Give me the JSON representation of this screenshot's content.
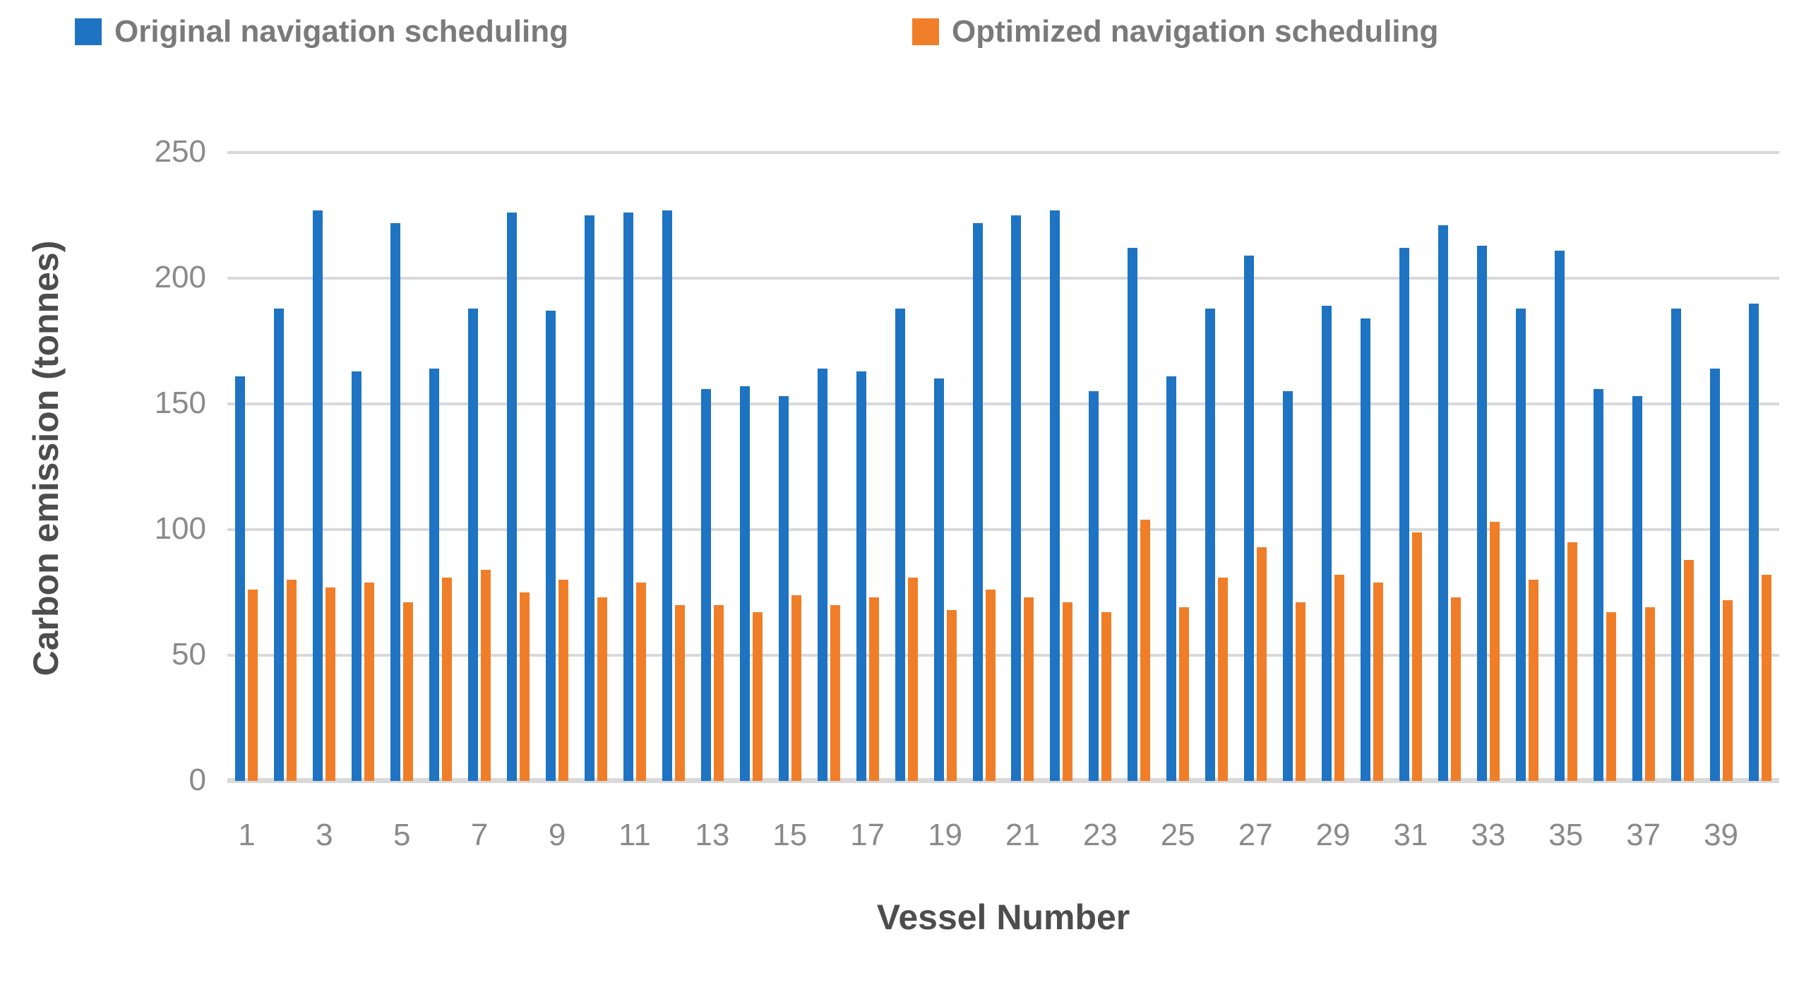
{
  "legend": {
    "items": [
      {
        "label": "Original navigation scheduling",
        "color": "#1e73c2"
      },
      {
        "label": "Optimized navigation scheduling",
        "color": "#f07e28"
      }
    ]
  },
  "colors": {
    "original_series": "#1e73c2",
    "optimized_series": "#f07e28",
    "gridline": "#d9d9d9",
    "tick_text": "#8a8a8a",
    "axis_title_text": "#4d4d4d",
    "legend_text": "#7a7a7a"
  },
  "chart_data": {
    "type": "bar",
    "title": "",
    "xlabel": "Vessel Number",
    "ylabel": "Carbon emission (tonnes)",
    "ylim": [
      0,
      250
    ],
    "yticks": [
      0,
      50,
      100,
      150,
      200,
      250
    ],
    "grid": "horizontal",
    "legend_position": "top",
    "categories": [
      1,
      2,
      3,
      4,
      5,
      6,
      7,
      8,
      9,
      10,
      11,
      12,
      13,
      14,
      15,
      16,
      17,
      18,
      19,
      20,
      21,
      22,
      23,
      24,
      25,
      26,
      27,
      28,
      29,
      30,
      31,
      32,
      33,
      34,
      35,
      36,
      37,
      38,
      39,
      40
    ],
    "x_tick_labels_shown": [
      "1",
      "3",
      "5",
      "7",
      "9",
      "11",
      "13",
      "15",
      "17",
      "19",
      "21",
      "23",
      "25",
      "27",
      "29",
      "31",
      "33",
      "35",
      "37",
      "39"
    ],
    "series": [
      {
        "name": "Original navigation scheduling",
        "color": "#1e73c2",
        "values": [
          161,
          188,
          227,
          163,
          222,
          164,
          188,
          226,
          187,
          225,
          226,
          227,
          156,
          157,
          153,
          164,
          163,
          188,
          160,
          222,
          225,
          227,
          155,
          212,
          161,
          188,
          209,
          155,
          189,
          184,
          212,
          221,
          213,
          188,
          211,
          156,
          153,
          188,
          164,
          190
        ]
      },
      {
        "name": "Optimized navigation scheduling",
        "color": "#f07e28",
        "values": [
          76,
          80,
          77,
          79,
          71,
          81,
          84,
          75,
          80,
          73,
          79,
          70,
          70,
          67,
          74,
          70,
          73,
          81,
          68,
          76,
          73,
          71,
          67,
          104,
          69,
          81,
          93,
          71,
          82,
          79,
          99,
          73,
          103,
          80,
          95,
          67,
          69,
          88,
          72,
          82
        ]
      }
    ]
  }
}
